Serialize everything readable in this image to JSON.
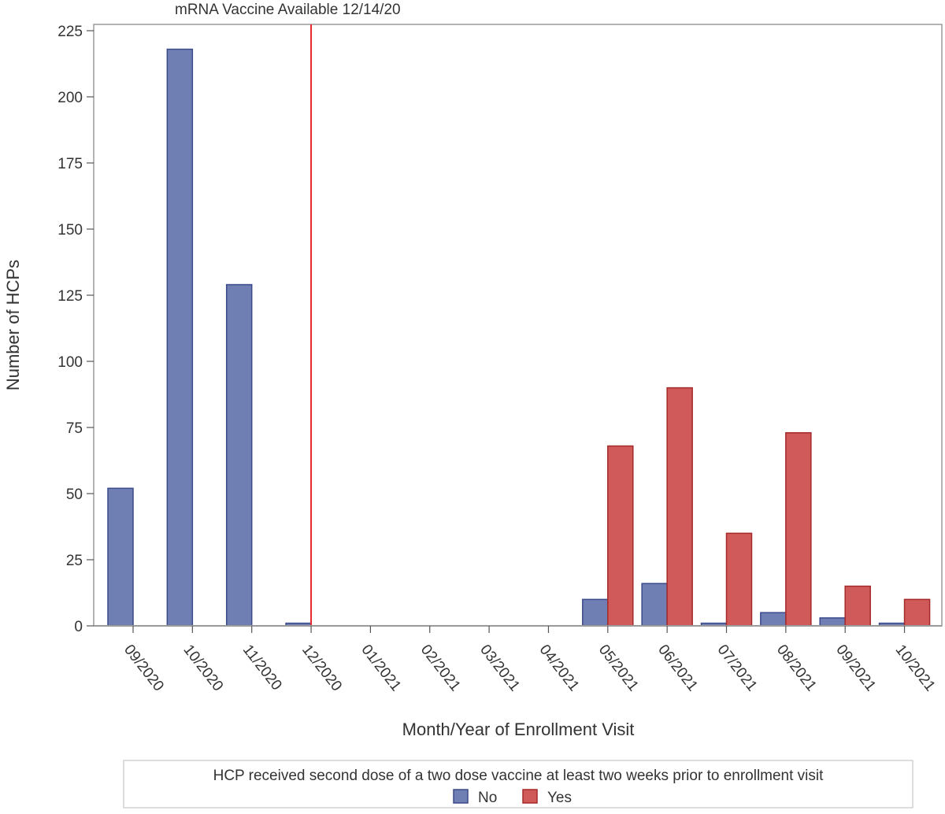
{
  "chart_data": {
    "type": "bar",
    "annotation": "mRNA Vaccine Available 12/14/20",
    "annotation_category": "12/2020",
    "xlabel": "Month/Year of Enrollment Visit",
    "ylabel": "Number of HCPs",
    "ylim": [
      0,
      225
    ],
    "yticks": [
      0,
      25,
      50,
      75,
      100,
      125,
      150,
      175,
      200,
      225
    ],
    "categories": [
      "09/2020",
      "10/2020",
      "11/2020",
      "12/2020",
      "01/2021",
      "02/2021",
      "03/2021",
      "04/2021",
      "05/2021",
      "06/2021",
      "07/2021",
      "08/2021",
      "09/2021",
      "10/2021"
    ],
    "series": [
      {
        "name": "No",
        "color": "#6F7EB3",
        "stroke": "#3B4A8A",
        "values": [
          52,
          218,
          129,
          1,
          0,
          0,
          0,
          0,
          10,
          16,
          1,
          5,
          3,
          1
        ]
      },
      {
        "name": "Yes",
        "color": "#D05A5A",
        "stroke": "#A52A2A",
        "values": [
          0,
          0,
          0,
          0,
          0,
          0,
          0,
          0,
          68,
          90,
          35,
          73,
          15,
          10
        ]
      }
    ],
    "annotation_color": "#E8262C",
    "legend": {
      "title": "HCP received second dose of a two dose vaccine at least two weeks prior to enrollment visit",
      "placement": "bottom"
    }
  }
}
